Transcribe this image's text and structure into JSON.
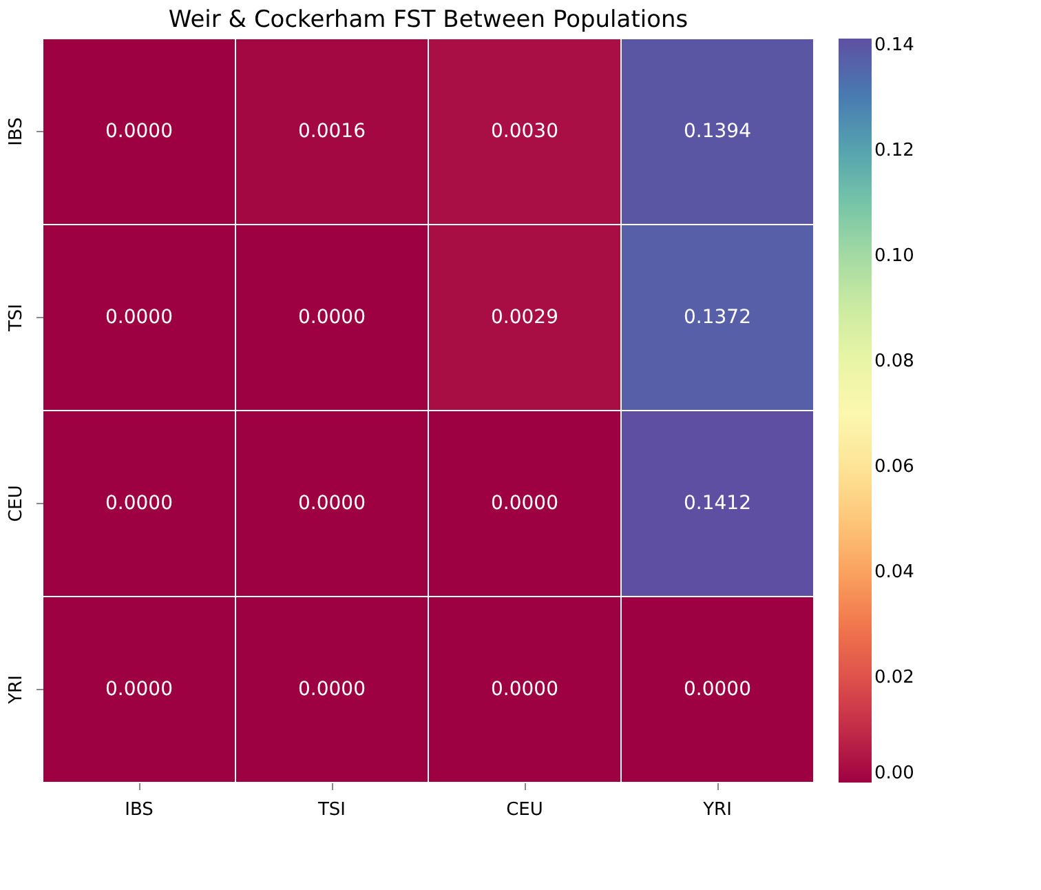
{
  "chart_data": {
    "type": "heatmap",
    "title": "Weir & Cockerham FST Between Populations",
    "categories": [
      "IBS",
      "TSI",
      "CEU",
      "YRI"
    ],
    "y_categories": [
      "IBS",
      "TSI",
      "CEU",
      "YRI"
    ],
    "cells": [
      [
        0.0,
        0.0016,
        0.003,
        0.1394
      ],
      [
        0.0,
        0.0,
        0.0029,
        0.1372
      ],
      [
        0.0,
        0.0,
        0.0,
        0.1412
      ],
      [
        0.0,
        0.0,
        0.0,
        0.0
      ]
    ],
    "cell_labels": [
      [
        "0.0000",
        "0.0016",
        "0.0030",
        "0.1394"
      ],
      [
        "0.0000",
        "0.0000",
        "0.0029",
        "0.1372"
      ],
      [
        "0.0000",
        "0.0000",
        "0.0000",
        "0.1412"
      ],
      [
        "0.0000",
        "0.0000",
        "0.0000",
        "0.0000"
      ]
    ],
    "clim": [
      0,
      0.1412
    ],
    "cticks": [
      {
        "value": 0,
        "label": "0.00"
      },
      {
        "value": 0.02,
        "label": "0.02"
      },
      {
        "value": 0.04,
        "label": "0.04"
      },
      {
        "value": 0.06,
        "label": "0.06"
      },
      {
        "value": 0.08,
        "label": "0.08"
      },
      {
        "value": 0.1,
        "label": "0.10"
      },
      {
        "value": 0.12,
        "label": "0.12"
      },
      {
        "value": 0.14,
        "label": "0.14"
      }
    ]
  }
}
